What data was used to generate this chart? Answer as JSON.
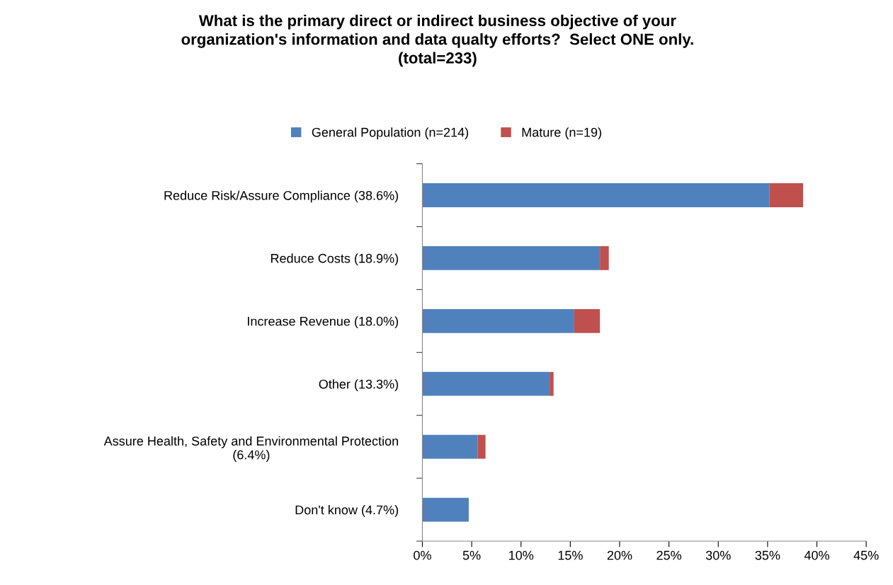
{
  "chart_data": {
    "type": "bar",
    "orientation": "horizontal",
    "stacked": true,
    "title": "What is the primary direct or indirect business objective of your\norganization's information and data qualty efforts?  Select ONE only.\n(total=233)",
    "categories": [
      "Reduce Risk/Assure Compliance (38.6%)",
      "Reduce Costs (18.9%)",
      "Increase Revenue (18.0%)",
      "Other (13.3%)",
      "Assure Health, Safety and Environmental Protection\n(6.4%)",
      "Don't know (4.7%)"
    ],
    "series": [
      {
        "name": "General Population (n=214)",
        "color": "#4f81bd",
        "values": [
          35.2,
          18.0,
          15.4,
          12.9,
          5.6,
          4.7
        ]
      },
      {
        "name": "Mature (n=19)",
        "color": "#c0504d",
        "values": [
          3.4,
          0.9,
          2.6,
          0.4,
          0.8,
          0
        ]
      }
    ],
    "xlim": [
      0,
      45
    ],
    "xticks": [
      {
        "value": 0,
        "label": "0%"
      },
      {
        "value": 5,
        "label": "5%"
      },
      {
        "value": 10,
        "label": "10%"
      },
      {
        "value": 15,
        "label": "15%"
      },
      {
        "value": 20,
        "label": "20%"
      },
      {
        "value": 25,
        "label": "25%"
      },
      {
        "value": 30,
        "label": "30%"
      },
      {
        "value": 35,
        "label": "35%"
      },
      {
        "value": 40,
        "label": "40%"
      },
      {
        "value": 45,
        "label": "45%"
      }
    ],
    "legend": "top",
    "grid": false
  }
}
